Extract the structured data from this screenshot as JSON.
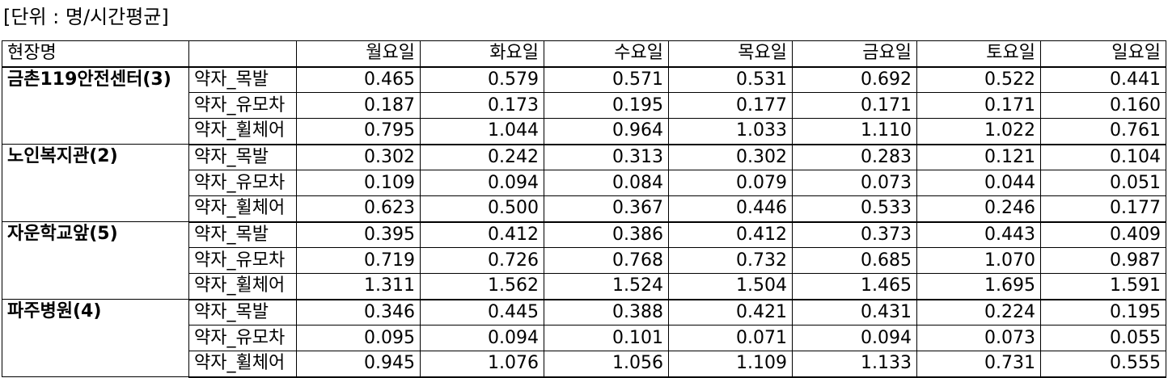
{
  "unit_label": "[단위 : 명/시간평균]",
  "header": {
    "site_col": "현장명",
    "type_col": "",
    "days": [
      "월요일",
      "화요일",
      "수요일",
      "목요일",
      "금요일",
      "토요일",
      "일요일"
    ]
  },
  "groups": [
    {
      "name": "금촌119안전센터(3)",
      "rows": [
        {
          "type": "약자_목발",
          "values": [
            "0.465",
            "0.579",
            "0.571",
            "0.531",
            "0.692",
            "0.522",
            "0.441"
          ]
        },
        {
          "type": "약자_유모차",
          "values": [
            "0.187",
            "0.173",
            "0.195",
            "0.177",
            "0.171",
            "0.171",
            "0.160"
          ]
        },
        {
          "type": "약자_휠체어",
          "values": [
            "0.795",
            "1.044",
            "0.964",
            "1.033",
            "1.110",
            "1.022",
            "0.761"
          ]
        }
      ]
    },
    {
      "name": "노인복지관(2)",
      "rows": [
        {
          "type": "약자_목발",
          "values": [
            "0.302",
            "0.242",
            "0.313",
            "0.302",
            "0.283",
            "0.121",
            "0.104"
          ]
        },
        {
          "type": "약자_유모차",
          "values": [
            "0.109",
            "0.094",
            "0.084",
            "0.079",
            "0.073",
            "0.044",
            "0.051"
          ]
        },
        {
          "type": "약자_휠체어",
          "values": [
            "0.623",
            "0.500",
            "0.367",
            "0.446",
            "0.533",
            "0.246",
            "0.177"
          ]
        }
      ]
    },
    {
      "name": "자운학교앞(5)",
      "rows": [
        {
          "type": "약자_목발",
          "values": [
            "0.395",
            "0.412",
            "0.386",
            "0.412",
            "0.373",
            "0.443",
            "0.409"
          ]
        },
        {
          "type": "약자_유모차",
          "values": [
            "0.719",
            "0.726",
            "0.768",
            "0.732",
            "0.685",
            "1.070",
            "0.987"
          ]
        },
        {
          "type": "약자_휠체어",
          "values": [
            "1.311",
            "1.562",
            "1.524",
            "1.504",
            "1.465",
            "1.695",
            "1.591"
          ]
        }
      ]
    },
    {
      "name": "파주병원(4)",
      "rows": [
        {
          "type": "약자_목발",
          "values": [
            "0.346",
            "0.445",
            "0.388",
            "0.421",
            "0.431",
            "0.224",
            "0.195"
          ]
        },
        {
          "type": "약자_유모차",
          "values": [
            "0.095",
            "0.094",
            "0.101",
            "0.071",
            "0.094",
            "0.073",
            "0.055"
          ]
        },
        {
          "type": "약자_휠체어",
          "values": [
            "0.945",
            "1.076",
            "1.056",
            "1.109",
            "1.133",
            "0.731",
            "0.555"
          ]
        }
      ]
    }
  ]
}
